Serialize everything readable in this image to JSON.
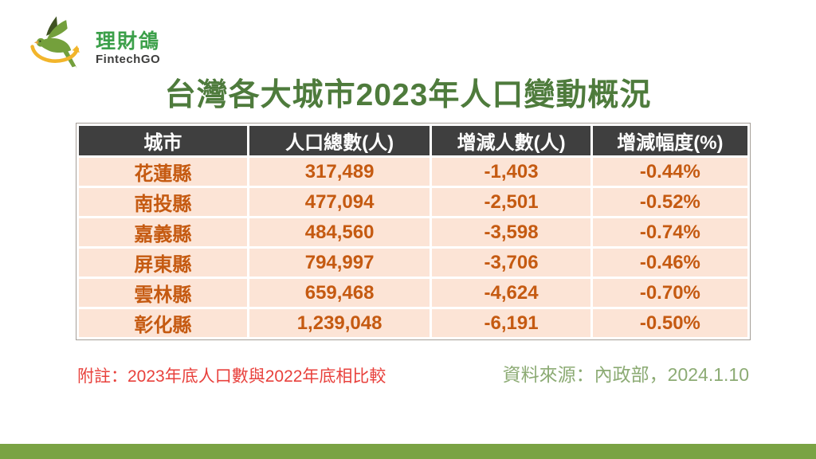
{
  "logo": {
    "brand_zh": "理財鴿",
    "brand_en": "FintechGO"
  },
  "title": "台灣各大城市2023年人口變動概況",
  "table": {
    "headers": [
      "城市",
      "人口總數(人)",
      "增減人數(人)",
      "增減幅度(%)"
    ],
    "rows": [
      [
        "花蓮縣",
        "317,489",
        "-1,403",
        "-0.44%"
      ],
      [
        "南投縣",
        "477,094",
        "-2,501",
        "-0.52%"
      ],
      [
        "嘉義縣",
        "484,560",
        "-3,598",
        "-0.74%"
      ],
      [
        "屏東縣",
        "794,997",
        "-3,706",
        "-0.46%"
      ],
      [
        "雲林縣",
        "659,468",
        "-4,624",
        "-0.70%"
      ],
      [
        "彰化縣",
        "1,239,048",
        "-6,191",
        "-0.50%"
      ]
    ]
  },
  "footnote": "附註：2023年底人口數與2022年底相比較",
  "source": "資料來源：內政部，2024.1.10",
  "colors": {
    "title_green": "#4e7b3c",
    "header_bg": "#3f3f3f",
    "row_bg": "#fce4d6",
    "cell_text": "#c55a11",
    "footnote_red": "#e8413c",
    "source_green": "#8cab74",
    "footer_bar_green": "#7aa344",
    "brand_green": "#3ca04a",
    "swoosh_yellow": "#f2b52b"
  }
}
